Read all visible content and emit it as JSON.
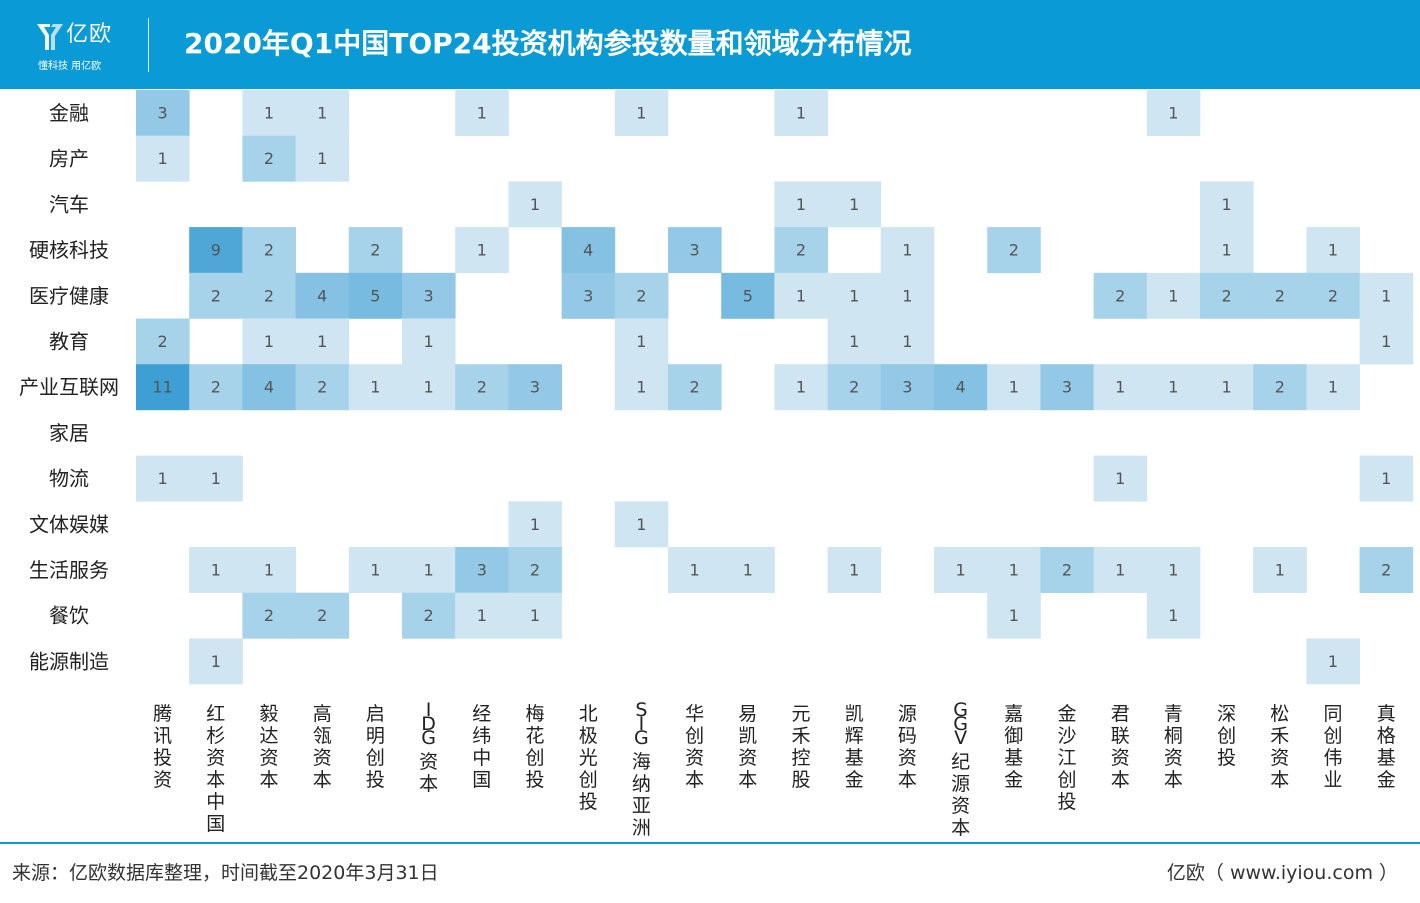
{
  "header": {
    "logo_text": "亿欧",
    "logo_slogan": "懂科技 用亿欧",
    "title": "2020年Q1中国TOP24投资机构参投数量和领域分布情况"
  },
  "chart_data": {
    "type": "heatmap",
    "title": "2020年Q1中国TOP24投资机构参投数量和领域分布情况",
    "rows": [
      "金融",
      "房产",
      "汽车",
      "硬核科技",
      "医疗健康",
      "教育",
      "产业互联网",
      "家居",
      "物流",
      "文体娱媒",
      "生活服务",
      "餐饮",
      "能源制造"
    ],
    "columns": [
      "腾讯投资",
      "红杉资本中国",
      "毅达资本",
      "高瓴资本",
      "启明创投",
      "IDG资本",
      "经纬中国",
      "梅花创投",
      "北极光创投",
      "SIG海纳亚洲",
      "华创资本",
      "易凯资本",
      "元禾控股",
      "凯辉基金",
      "源码资本",
      "GGV纪源资本",
      "嘉御基金",
      "金沙江创投",
      "君联资本",
      "青桐资本",
      "深创投",
      "松禾资本",
      "同创伟业",
      "真格基金"
    ],
    "values": [
      [
        3,
        null,
        1,
        1,
        null,
        null,
        1,
        null,
        null,
        1,
        null,
        null,
        1,
        null,
        null,
        null,
        null,
        null,
        null,
        1,
        null,
        null,
        null,
        null
      ],
      [
        1,
        null,
        2,
        1,
        null,
        null,
        null,
        null,
        null,
        null,
        null,
        null,
        null,
        null,
        null,
        null,
        null,
        null,
        null,
        null,
        null,
        null,
        null,
        null
      ],
      [
        null,
        null,
        null,
        null,
        null,
        null,
        null,
        1,
        null,
        null,
        null,
        null,
        1,
        1,
        null,
        null,
        null,
        null,
        null,
        null,
        1,
        null,
        null,
        null
      ],
      [
        null,
        9,
        2,
        null,
        2,
        null,
        1,
        null,
        4,
        null,
        3,
        null,
        2,
        null,
        1,
        null,
        2,
        null,
        null,
        null,
        1,
        null,
        1,
        null
      ],
      [
        null,
        2,
        2,
        4,
        5,
        3,
        null,
        null,
        3,
        2,
        null,
        5,
        1,
        1,
        1,
        null,
        null,
        null,
        2,
        1,
        2,
        2,
        2,
        1
      ],
      [
        2,
        null,
        1,
        1,
        null,
        1,
        null,
        null,
        null,
        1,
        null,
        null,
        null,
        1,
        1,
        null,
        null,
        null,
        null,
        null,
        null,
        null,
        null,
        1
      ],
      [
        11,
        2,
        4,
        2,
        1,
        1,
        2,
        3,
        null,
        1,
        2,
        null,
        1,
        2,
        3,
        4,
        1,
        3,
        1,
        1,
        1,
        2,
        1,
        null
      ],
      [
        null,
        null,
        null,
        null,
        null,
        null,
        null,
        null,
        null,
        null,
        null,
        null,
        null,
        null,
        null,
        null,
        null,
        null,
        null,
        null,
        null,
        null,
        null,
        null
      ],
      [
        1,
        1,
        null,
        null,
        null,
        null,
        null,
        null,
        null,
        null,
        null,
        null,
        null,
        null,
        null,
        null,
        null,
        null,
        1,
        null,
        null,
        null,
        null,
        1
      ],
      [
        null,
        null,
        null,
        null,
        null,
        null,
        null,
        1,
        null,
        1,
        null,
        null,
        null,
        null,
        null,
        null,
        null,
        null,
        null,
        null,
        null,
        null,
        null,
        null
      ],
      [
        null,
        1,
        1,
        null,
        1,
        1,
        3,
        2,
        null,
        null,
        1,
        1,
        null,
        1,
        null,
        1,
        1,
        2,
        1,
        1,
        null,
        1,
        null,
        2
      ],
      [
        null,
        null,
        2,
        2,
        null,
        2,
        1,
        1,
        null,
        null,
        null,
        null,
        null,
        null,
        null,
        null,
        1,
        null,
        null,
        1,
        null,
        null,
        null,
        null
      ],
      [
        null,
        1,
        null,
        null,
        null,
        null,
        null,
        null,
        null,
        null,
        null,
        null,
        null,
        null,
        null,
        null,
        null,
        null,
        null,
        null,
        null,
        null,
        1,
        null
      ]
    ],
    "color_scale": {
      "low": "#cfe6f2",
      "high": "#3e9fd5",
      "min": 1,
      "max": 11
    },
    "text_color": "#555555",
    "label_color": "#222222"
  },
  "footer": {
    "source": "来源：亿欧数据库整理，时间截至2020年3月31日",
    "brand": "亿欧（ www.iyiou.com ）"
  }
}
